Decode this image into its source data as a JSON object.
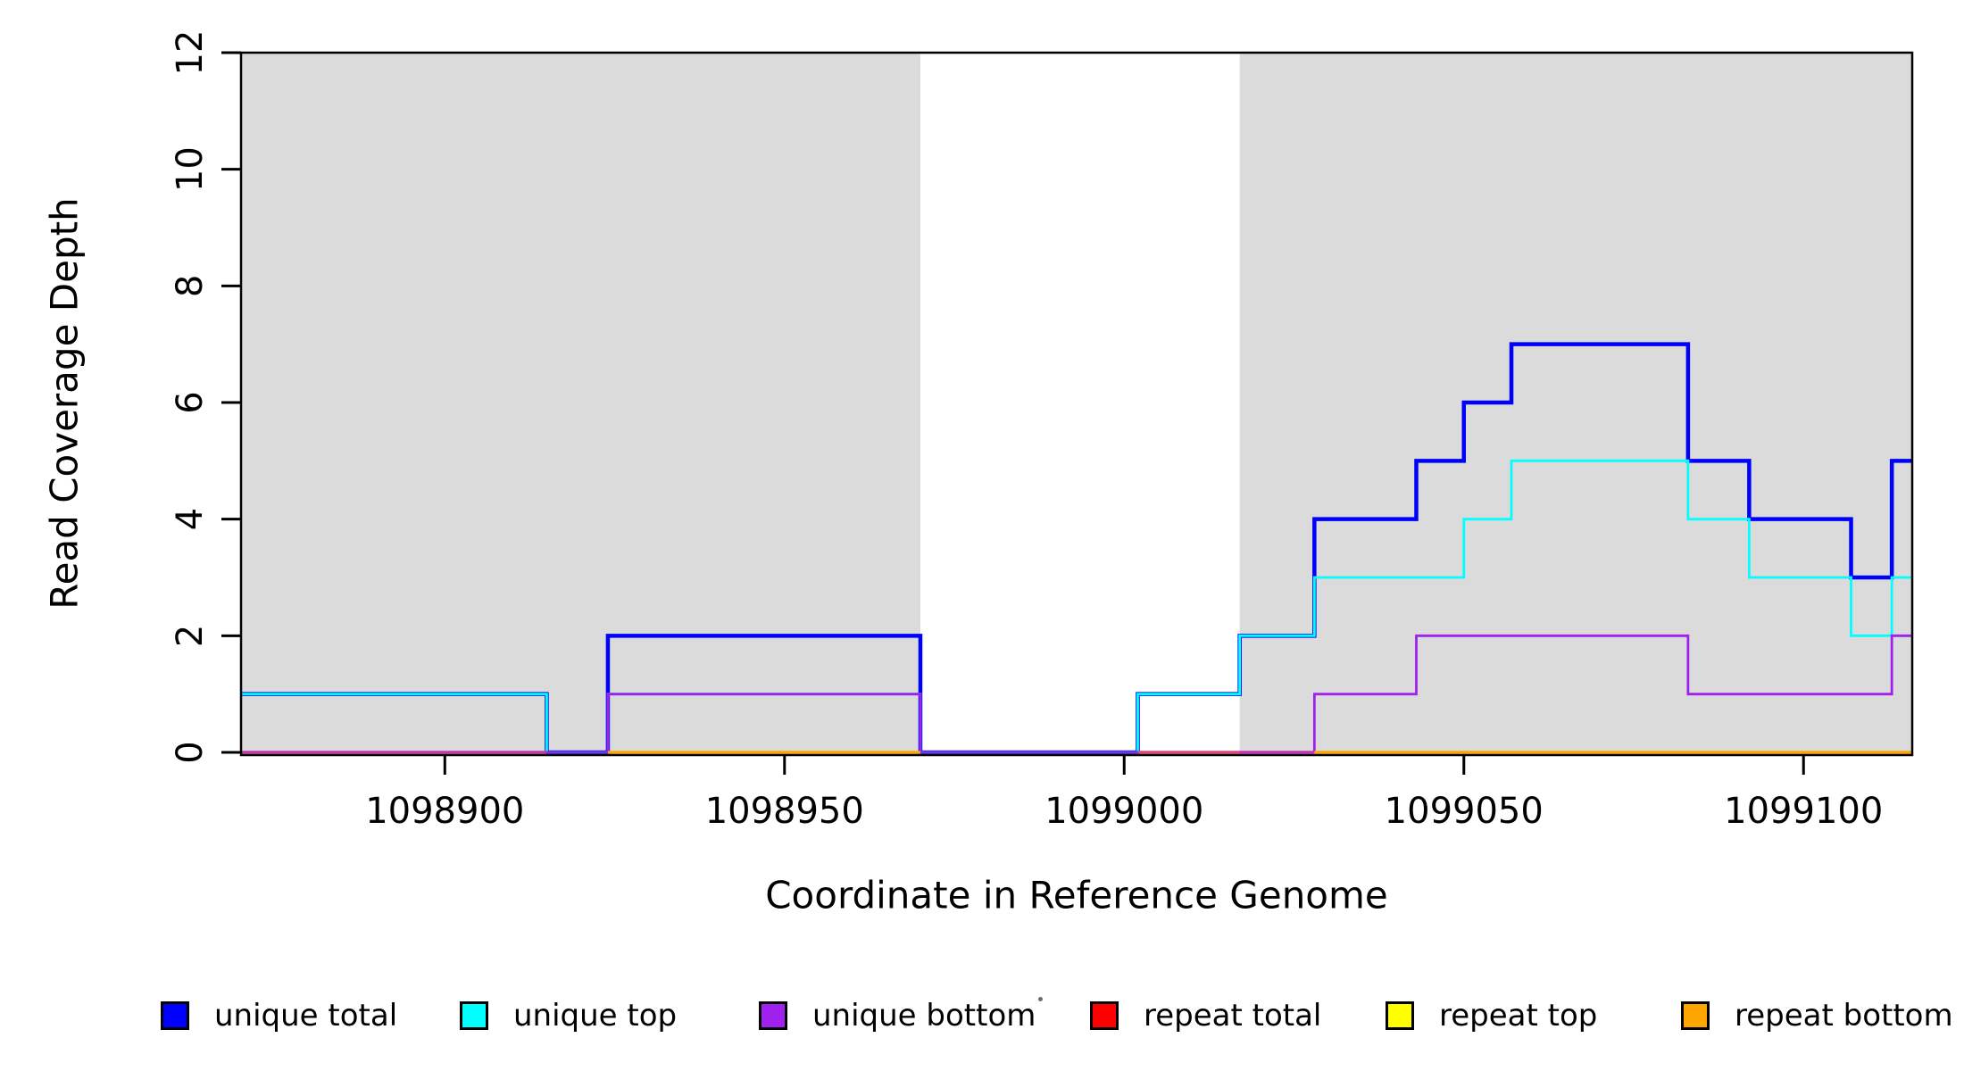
{
  "figure": {
    "background": "#FFFFFF"
  },
  "axes": {
    "xlabel": "Coordinate in Reference Genome",
    "ylabel": "Read Coverage Depth"
  },
  "chart_data": {
    "type": "line",
    "subtype": "step-coverage",
    "title": "",
    "xlabel": "Coordinate in Reference Genome",
    "ylabel": "Read Coverage Depth",
    "xlim": [
      1098870,
      1099116
    ],
    "ylim": [
      0,
      12
    ],
    "xticks": [
      1098900,
      1098950,
      1099000,
      1099050,
      1099100
    ],
    "yticks": [
      0,
      2,
      4,
      6,
      8,
      10,
      12
    ],
    "grid": false,
    "legend_position": "bottom",
    "plot_box_color": "#000000",
    "background_bands": [
      {
        "x0": 1098870,
        "x1": 1098970,
        "color": "#DBDBDB"
      },
      {
        "x0": 1099017,
        "x1": 1099116,
        "color": "#DBDBDB"
      }
    ],
    "series": [
      {
        "name": "unique total",
        "color": "#0000FF",
        "steps": [
          [
            1098870,
            1
          ],
          [
            1098915,
            0
          ],
          [
            1098924,
            2
          ],
          [
            1098970,
            0
          ],
          [
            1099002,
            1
          ],
          [
            1099017,
            2
          ],
          [
            1099028,
            4
          ],
          [
            1099043,
            5
          ],
          [
            1099050,
            6
          ],
          [
            1099057,
            7
          ],
          [
            1099083,
            5
          ],
          [
            1099092,
            4
          ],
          [
            1099107,
            3
          ],
          [
            1099113,
            5
          ],
          [
            1099116,
            5
          ]
        ]
      },
      {
        "name": "unique top",
        "color": "#00FFFF",
        "steps": [
          [
            1098870,
            1
          ],
          [
            1098915,
            0
          ],
          [
            1098924,
            1
          ],
          [
            1098970,
            0
          ],
          [
            1099002,
            1
          ],
          [
            1099017,
            2
          ],
          [
            1099028,
            3
          ],
          [
            1099050,
            4
          ],
          [
            1099057,
            5
          ],
          [
            1099083,
            4
          ],
          [
            1099092,
            3
          ],
          [
            1099107,
            2
          ],
          [
            1099113,
            3
          ],
          [
            1099116,
            3
          ]
        ]
      },
      {
        "name": "unique bottom",
        "color": "#A020F0",
        "steps": [
          [
            1098870,
            0
          ],
          [
            1098924,
            1
          ],
          [
            1098970,
            0
          ],
          [
            1099028,
            1
          ],
          [
            1099043,
            2
          ],
          [
            1099083,
            1
          ],
          [
            1099113,
            2
          ],
          [
            1099116,
            2
          ]
        ]
      },
      {
        "name": "repeat total",
        "color": "#FF0000",
        "steps": [
          [
            1098870,
            0
          ],
          [
            1099116,
            0
          ]
        ]
      },
      {
        "name": "repeat top",
        "color": "#FFFF00",
        "steps": [
          [
            1098870,
            0
          ],
          [
            1099116,
            0
          ]
        ]
      },
      {
        "name": "repeat bottom",
        "color": "#FFA500",
        "steps": [
          [
            1098870,
            0
          ],
          [
            1099116,
            0
          ]
        ]
      }
    ],
    "baseline_overdraw_segments": [
      {
        "x0": 1098870,
        "x1": 1098915,
        "color": "#CC33A6"
      },
      {
        "x0": 1098915,
        "x1": 1098924,
        "color": "#6B3AE3"
      },
      {
        "x0": 1098924,
        "x1": 1098970,
        "color": "#FFA500"
      },
      {
        "x0": 1098970,
        "x1": 1099002,
        "color": "#6B3AE3"
      },
      {
        "x0": 1099002,
        "x1": 1099017,
        "color": "#E0457B"
      },
      {
        "x0": 1099017,
        "x1": 1099028,
        "color": "#C333B8"
      },
      {
        "x0": 1099028,
        "x1": 1099116,
        "color": "#FFA500"
      }
    ]
  },
  "legend": {
    "items": [
      {
        "label": "unique total",
        "color": "#0000FF"
      },
      {
        "label": "unique top",
        "color": "#00FFFF"
      },
      {
        "label": "unique bottom",
        "color": "#A020F0"
      },
      {
        "label": "repeat total",
        "color": "#FF0000"
      },
      {
        "label": "repeat top",
        "color": "#FFFF00"
      },
      {
        "label": "repeat bottom",
        "color": "#FFA500"
      }
    ]
  }
}
